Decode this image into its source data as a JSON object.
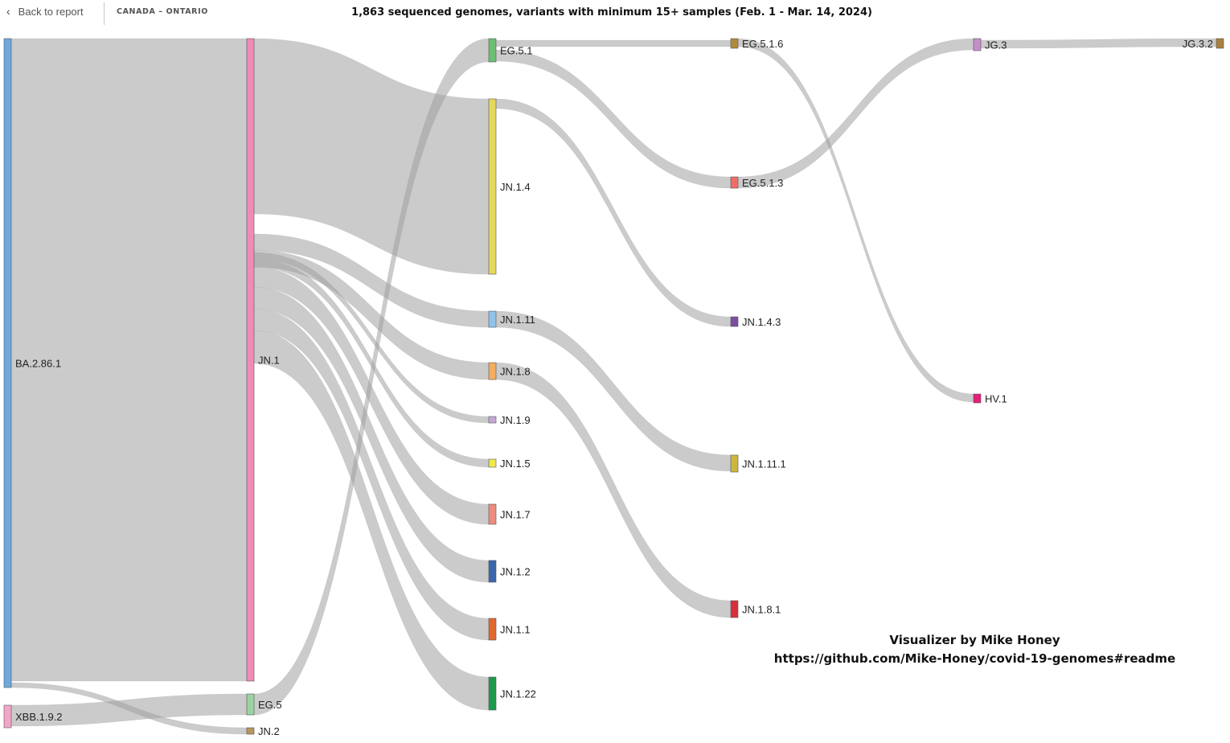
{
  "header": {
    "back_label": "Back to report",
    "breadcrumb": "CANADA – ONTARIO",
    "title": "1,863 sequenced genomes, variants with minimum 15+ samples (Feb. 1 - Mar. 14, 2024)"
  },
  "nodes": [
    {
      "id": "BA.2.86.1",
      "color": "#6fa8dc"
    },
    {
      "id": "XBB.1.9.2",
      "color": "#f4a6c8"
    },
    {
      "id": "JN.1",
      "color": "#f08bb8"
    },
    {
      "id": "EG.5",
      "color": "#9ad3a0"
    },
    {
      "id": "JN.2",
      "color": "#b8965a"
    },
    {
      "id": "EG.5.1",
      "color": "#6cbf73"
    },
    {
      "id": "JN.1.4",
      "color": "#e5d85a"
    },
    {
      "id": "JN.1.11",
      "color": "#8ec3ec"
    },
    {
      "id": "JN.1.8",
      "color": "#f5ad60"
    },
    {
      "id": "JN.1.9",
      "color": "#c3a8d6"
    },
    {
      "id": "JN.1.5",
      "color": "#f0e84c"
    },
    {
      "id": "JN.1.7",
      "color": "#ec8c7e"
    },
    {
      "id": "JN.1.2",
      "color": "#3b66ac"
    },
    {
      "id": "JN.1.1",
      "color": "#e0672e"
    },
    {
      "id": "JN.1.22",
      "color": "#1f9a4d"
    },
    {
      "id": "EG.5.1.6",
      "color": "#b08a3c"
    },
    {
      "id": "EG.5.1.3",
      "color": "#f06c68"
    },
    {
      "id": "JN.1.4.3",
      "color": "#7b4ea3"
    },
    {
      "id": "JN.1.11.1",
      "color": "#cdb63e"
    },
    {
      "id": "JN.1.8.1",
      "color": "#d7303a"
    },
    {
      "id": "JG.3",
      "color": "#c48fc8"
    },
    {
      "id": "HV.1",
      "color": "#e61e7c"
    },
    {
      "id": "JG.3.2",
      "color": "#a9813e"
    }
  ],
  "links": [
    {
      "source": "BA.2.86.1",
      "target": "JN.1"
    },
    {
      "source": "BA.2.86.1",
      "target": "JN.2"
    },
    {
      "source": "XBB.1.9.2",
      "target": "EG.5"
    },
    {
      "source": "JN.1",
      "target": "JN.1.4"
    },
    {
      "source": "JN.1",
      "target": "JN.1.11"
    },
    {
      "source": "JN.1",
      "target": "JN.1.8"
    },
    {
      "source": "JN.1",
      "target": "JN.1.9"
    },
    {
      "source": "JN.1",
      "target": "JN.1.5"
    },
    {
      "source": "JN.1",
      "target": "JN.1.7"
    },
    {
      "source": "JN.1",
      "target": "JN.1.2"
    },
    {
      "source": "JN.1",
      "target": "JN.1.1"
    },
    {
      "source": "JN.1",
      "target": "JN.1.22"
    },
    {
      "source": "EG.5",
      "target": "EG.5.1"
    },
    {
      "source": "EG.5.1",
      "target": "EG.5.1.6"
    },
    {
      "source": "EG.5.1",
      "target": "EG.5.1.3"
    },
    {
      "source": "JN.1.4",
      "target": "JN.1.4.3"
    },
    {
      "source": "JN.1.11",
      "target": "JN.1.11.1"
    },
    {
      "source": "JN.1.8",
      "target": "JN.1.8.1"
    },
    {
      "source": "EG.5.1.3",
      "target": "JG.3"
    },
    {
      "source": "EG.5.1.6",
      "target": "HV.1"
    },
    {
      "source": "JG.3",
      "target": "JG.3.2"
    }
  ],
  "credit": {
    "line1": "Visualizer by Mike Honey",
    "line2": "https://github.com/Mike-Honey/covid-19-genomes#readme"
  }
}
